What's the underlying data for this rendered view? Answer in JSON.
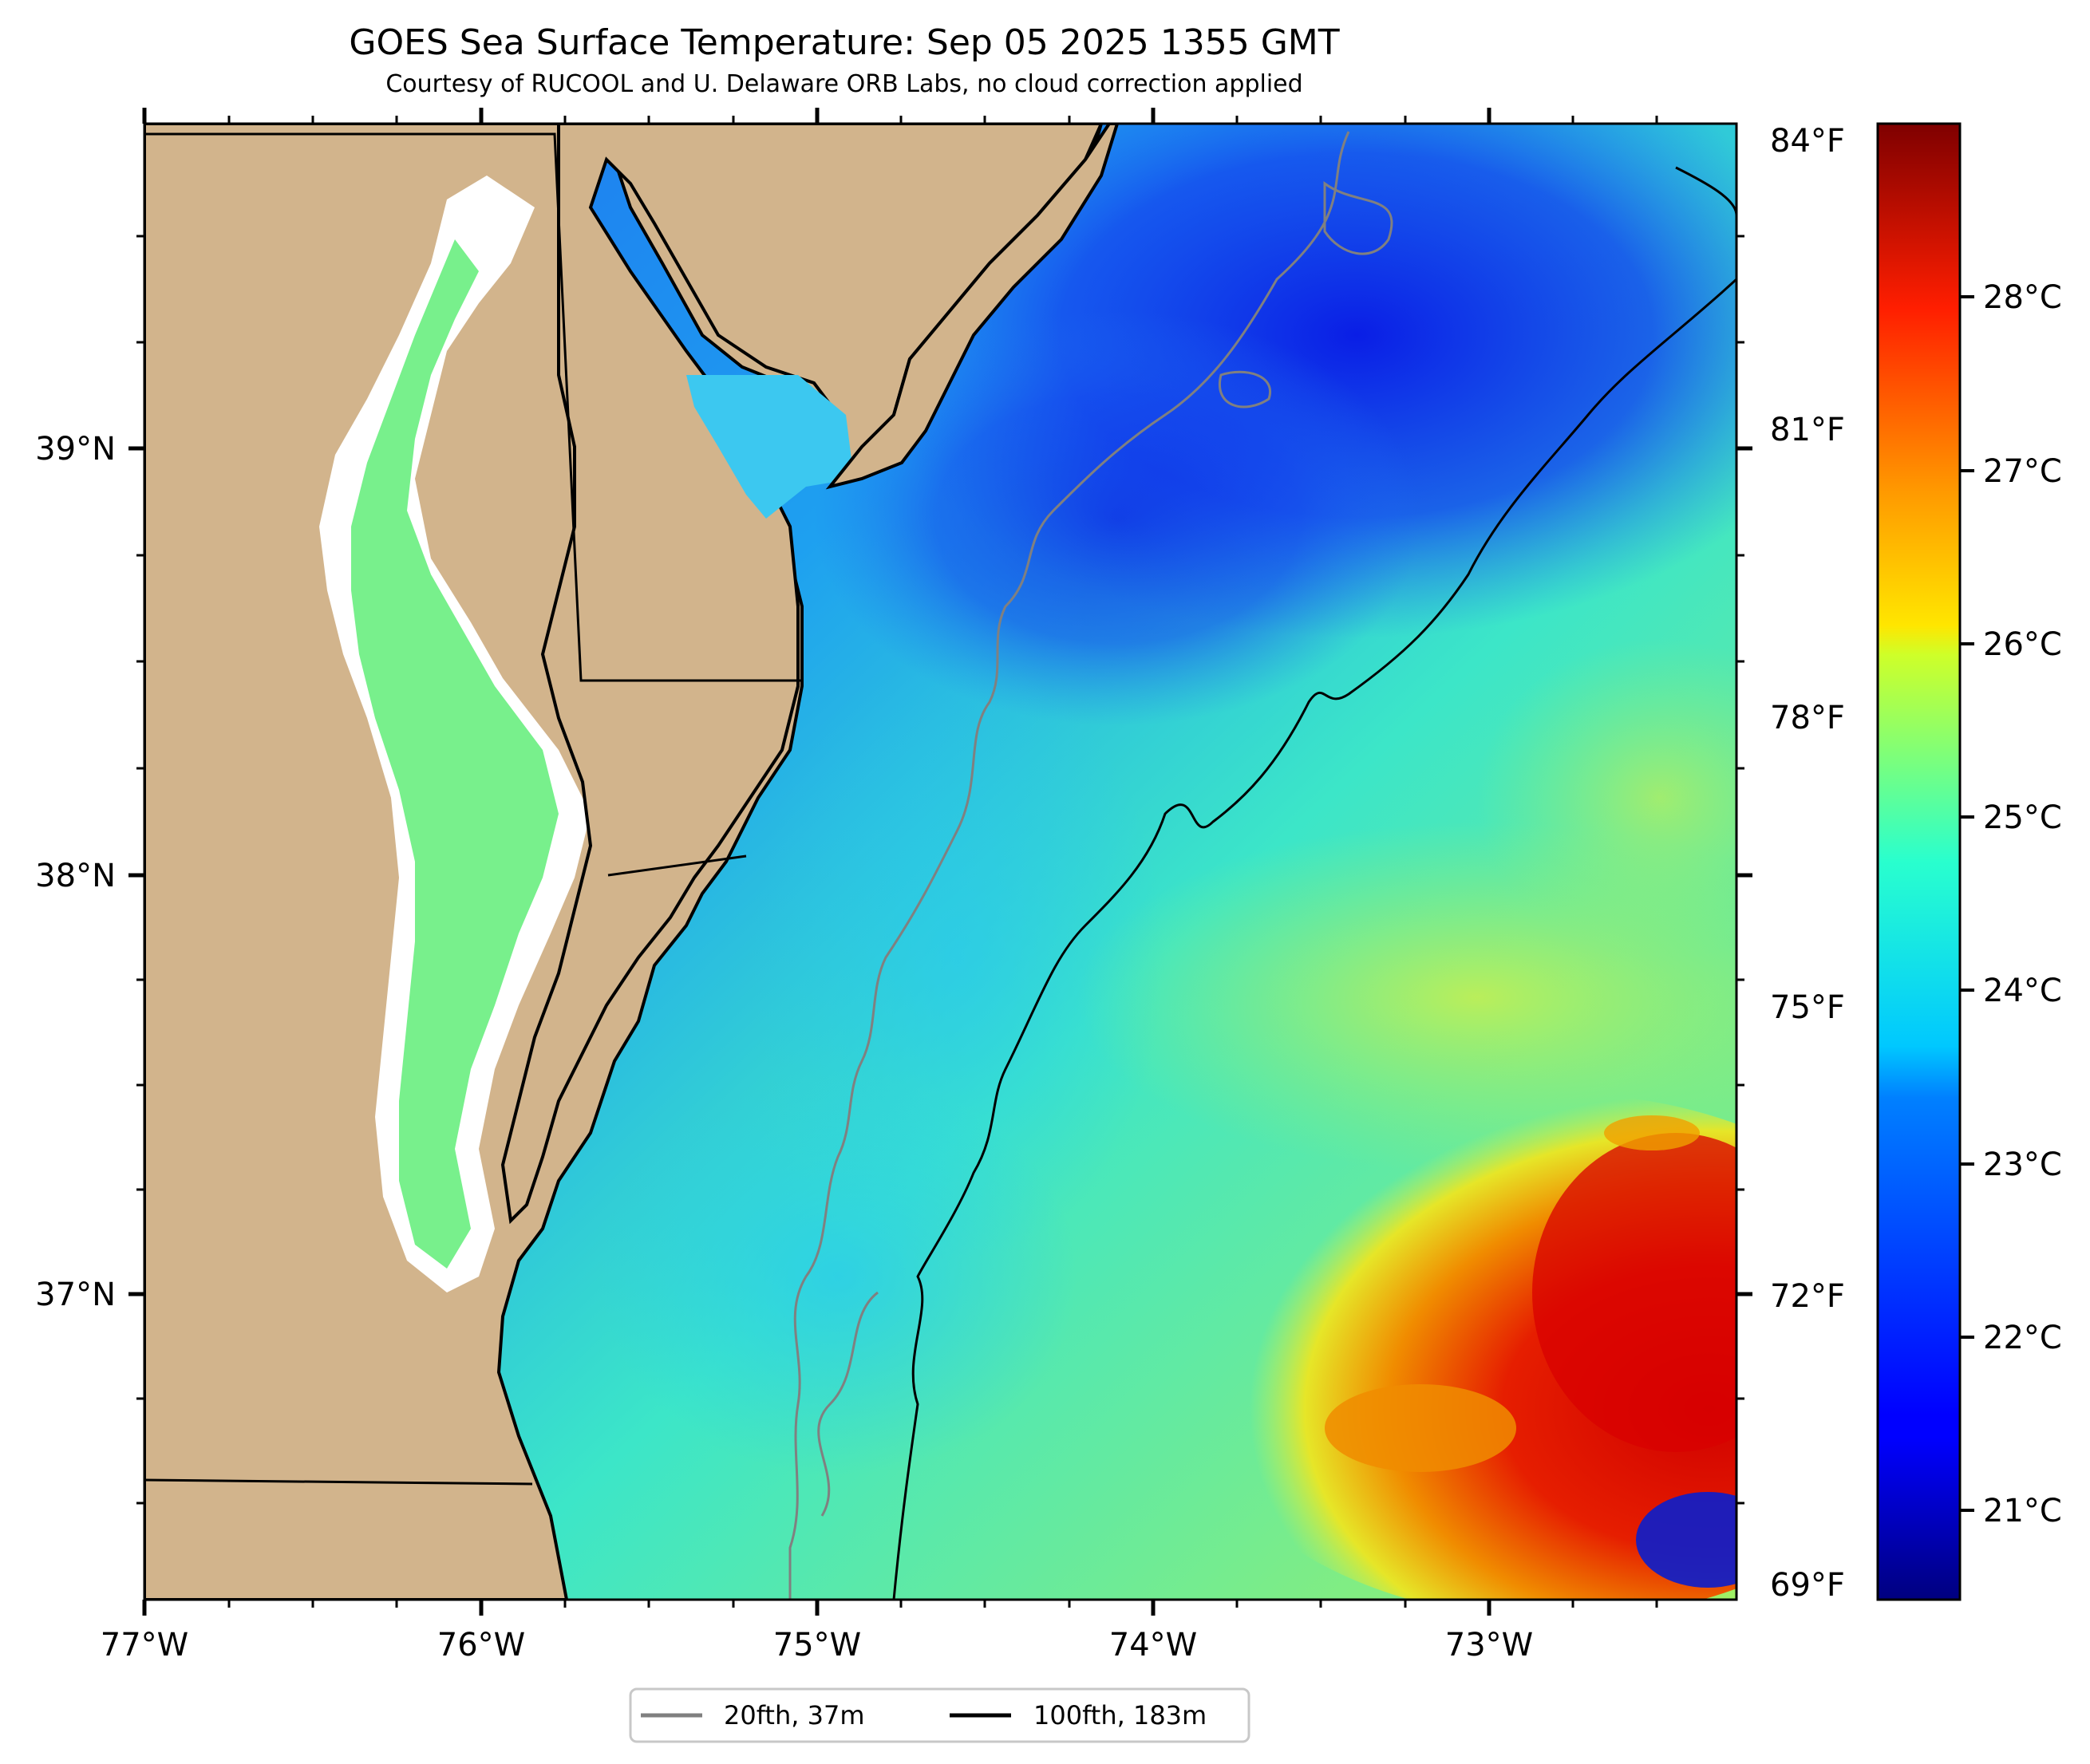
{
  "title": "GOES Sea Surface Temperature: Sep 05 2025 1355 GMT",
  "subtitle": "Courtesy of RUCOOL and U. Delaware ORB Labs, no cloud correction applied",
  "axes": {
    "x_ticks": [
      "77°W",
      "76°W",
      "75°W",
      "74°W",
      "73°W"
    ],
    "y_ticks": [
      "39°N",
      "38°N",
      "37°N"
    ],
    "fahrenheit_ticks": [
      "84°F",
      "81°F",
      "78°F",
      "75°F",
      "72°F",
      "69°F"
    ]
  },
  "colorbar": {
    "celsius_ticks": [
      "28°C",
      "27°C",
      "26°C",
      "25°C",
      "24°C",
      "23°C",
      "22°C",
      "21°C"
    ],
    "colormap": "jet",
    "range_c": [
      20.5,
      29.0
    ]
  },
  "legend": {
    "items": [
      {
        "label": "20fth, 37m",
        "color": "#808080"
      },
      {
        "label": "100fth, 183m",
        "color": "#000000"
      }
    ]
  },
  "colors": {
    "land": "#D2B48C",
    "cold": "#1E3CE6",
    "mid": "#1EC8F0",
    "green": "#50F0A0",
    "warm_yellow": "#E6F050",
    "hot": "#E61E00"
  }
}
